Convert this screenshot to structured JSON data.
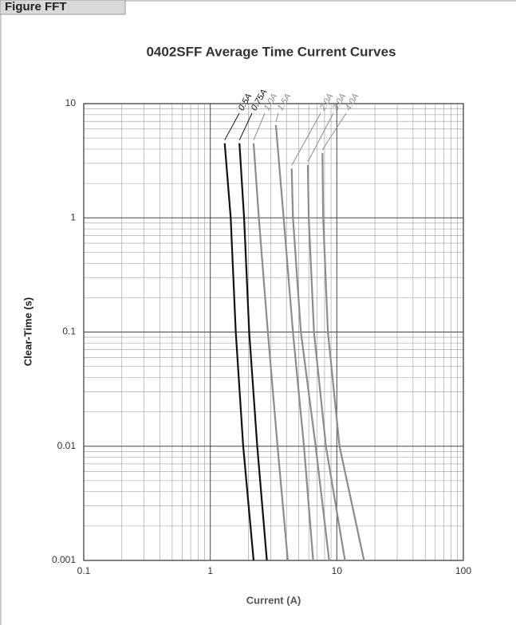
{
  "header": {
    "tab": "Figure FFT"
  },
  "chart_data": {
    "type": "line",
    "title": "0402SFF Average Time Current Curves",
    "x_label": "Current (A)",
    "y_label": "Clear-Time (s)",
    "log_x": true,
    "log_y": true,
    "grid": true,
    "minor_grid": true,
    "xlim": [
      0.1,
      100
    ],
    "xticks": [
      0.1,
      1,
      10,
      100
    ],
    "ylim": [
      0.001,
      10
    ],
    "yticks": [
      0.001,
      0.01,
      0.1,
      1,
      10
    ],
    "series": [
      {
        "name": "0.5A",
        "color": "#111111",
        "x": [
          1.3,
          1.45,
          1.59,
          1.82,
          2.2
        ],
        "values": [
          4.5,
          1,
          0.1,
          0.01,
          0.001
        ]
      },
      {
        "name": "0.75A",
        "color": "#111111",
        "x": [
          1.7,
          1.85,
          2.03,
          2.35,
          2.8
        ],
        "values": [
          4.5,
          1,
          0.1,
          0.01,
          0.001
        ]
      },
      {
        "name": "1.0A",
        "color": "#8c8c8c",
        "x": [
          2.2,
          2.42,
          2.85,
          3.4,
          4.1
        ],
        "values": [
          4.5,
          1,
          0.1,
          0.01,
          0.001
        ]
      },
      {
        "name": "1.5A",
        "color": "#8c8c8c",
        "x": [
          3.3,
          3.8,
          4.5,
          5.5,
          6.5
        ],
        "values": [
          6.5,
          1,
          0.1,
          0.01,
          0.001
        ]
      },
      {
        "name": "2.0A",
        "color": "#8c8c8c",
        "x": [
          4.4,
          4.5,
          5.2,
          6.8,
          8.7
        ],
        "values": [
          2.7,
          1,
          0.1,
          0.01,
          0.001
        ]
      },
      {
        "name": "3.0A",
        "color": "#8c8c8c",
        "x": [
          5.9,
          6.0,
          6.6,
          8.2,
          11.6
        ],
        "values": [
          2.9,
          1,
          0.1,
          0.01,
          0.001
        ]
      },
      {
        "name": "4.0A",
        "color": "#8c8c8c",
        "x": [
          7.7,
          7.8,
          8.5,
          10.5,
          16.4
        ],
        "values": [
          3.7,
          1,
          0.1,
          0.01,
          0.001
        ]
      }
    ]
  }
}
